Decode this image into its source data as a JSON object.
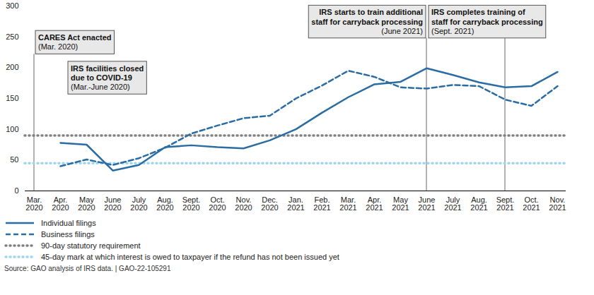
{
  "chart_data": {
    "type": "line",
    "categories": [
      "Mar.\n2020",
      "Apr.\n2020",
      "May\n2020",
      "June\n2020",
      "July\n2020",
      "Aug.\n2020",
      "Sept.\n2020",
      "Oct.\n2020",
      "Nov.\n2020",
      "Dec.\n2020",
      "Jan.\n2021",
      "Feb.\n2021",
      "Mar.\n2021",
      "Apr.\n2021",
      "May\n2021",
      "June\n2021",
      "July\n2021",
      "Aug.\n2021",
      "Sept.\n2021",
      "Oct.\n2021",
      "Nov.\n2021"
    ],
    "series": [
      {
        "name": "Individual filings",
        "color": "#2b6ca3",
        "line_style": "solid",
        "values": [
          null,
          78,
          75,
          33,
          42,
          71,
          74,
          71,
          69,
          82,
          100,
          127,
          152,
          173,
          177,
          199,
          188,
          176,
          168,
          170,
          193
        ]
      },
      {
        "name": "Business filings",
        "color": "#2b6ca3",
        "line_style": "dashed",
        "values": [
          null,
          40,
          51,
          42,
          53,
          70,
          93,
          106,
          118,
          122,
          150,
          171,
          195,
          185,
          168,
          166,
          172,
          170,
          148,
          138,
          170
        ]
      }
    ],
    "reference_lines": [
      {
        "name": "90-day statutory requirement",
        "value": 90,
        "color": "#7f7f7f",
        "line_style": "dotted"
      },
      {
        "name": "45-day mark at which interest is owed to taxpayer if the refund has not been issued yet",
        "value": 45,
        "color": "#9dd5f0",
        "line_style": "dotted"
      }
    ],
    "ylim": [
      0,
      300
    ],
    "yticks": [
      0,
      50,
      100,
      150,
      200,
      250,
      300
    ],
    "grid": false,
    "annotations": [
      {
        "x": "Mar.\n2020",
        "text": "CARES Act enacted",
        "detail": "(Mar. 2020)"
      },
      {
        "x": "Mar.\n2020",
        "text": "IRS facilities closed\ndue to COVID-19",
        "detail": "(Mar.-June 2020)"
      },
      {
        "x": "June\n2021",
        "text": "IRS starts to train additional\nstaff for carryback processing",
        "detail": "(June 2021)"
      },
      {
        "x": "Sept.\n2021",
        "text": "IRS completes training of\nstaff for carryback processing",
        "detail": "(Sept. 2021)"
      }
    ],
    "source": "Source: GAO analysis of IRS data.  |  GAO-22-105291"
  }
}
